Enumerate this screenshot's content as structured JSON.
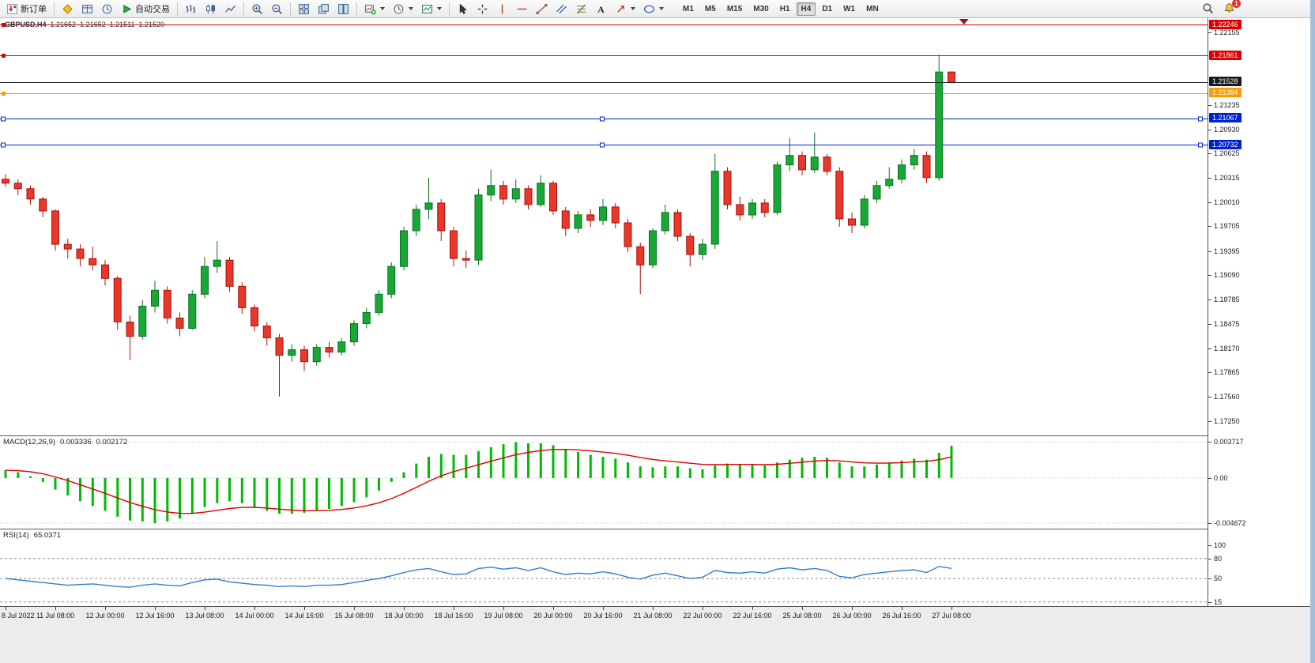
{
  "toolbar": {
    "groups": [
      {
        "items": [
          {
            "name": "new-order-button",
            "icon": "new-order-icon",
            "label": "新订单"
          }
        ]
      },
      {
        "items": [
          {
            "name": "metaeditor-button",
            "icon": "metaeditor-icon"
          },
          {
            "name": "data-window-button",
            "icon": "data-window-icon"
          },
          {
            "name": "history-center-button",
            "icon": "history-center-icon"
          },
          {
            "name": "autotrading-button",
            "icon": "autotrading-icon",
            "label": "自动交易"
          }
        ]
      },
      {
        "items": [
          {
            "name": "bar-chart-button",
            "icon": "bars-chart-icon"
          },
          {
            "name": "candlestick-chart-button",
            "icon": "candles-chart-icon"
          },
          {
            "name": "line-chart-button",
            "icon": "line-chart-icon"
          }
        ]
      },
      {
        "items": [
          {
            "name": "zoom-in-button",
            "icon": "zoom-in-icon"
          },
          {
            "name": "zoom-out-button",
            "icon": "zoom-out-icon"
          }
        ]
      },
      {
        "items": [
          {
            "name": "tile-windows-button",
            "icon": "tile-windows-icon"
          },
          {
            "name": "cascade-windows-button",
            "icon": "cascade-windows-icon"
          },
          {
            "name": "arrange-windows-button",
            "icon": "arrange-windows-icon"
          }
        ]
      },
      {
        "items": [
          {
            "name": "new-chart-button",
            "icon": "new-chart-icon",
            "caret": true
          },
          {
            "name": "profiles-button",
            "icon": "period-icon",
            "caret": true
          },
          {
            "name": "templates-button",
            "icon": "template-icon",
            "caret": true
          }
        ]
      },
      {
        "items": [
          {
            "name": "cursor-button",
            "icon": "cursor-icon"
          },
          {
            "name": "crosshair-button",
            "icon": "crosshair-icon"
          },
          {
            "name": "vertical-line-button",
            "icon": "vline-icon"
          },
          {
            "name": "horizontal-line-button",
            "icon": "hline-icon"
          },
          {
            "name": "trendline-button",
            "icon": "trendline-icon"
          },
          {
            "name": "channel-button",
            "icon": "channel-icon"
          },
          {
            "name": "fibonacci-button",
            "icon": "fibonacci-icon"
          },
          {
            "name": "text-button",
            "icon": "text-icon"
          },
          {
            "name": "arrows-button",
            "icon": "arrows-icon",
            "caret": true
          },
          {
            "name": "shapes-button",
            "icon": "shapes-icon",
            "caret": true
          }
        ]
      }
    ],
    "timeframes": [
      {
        "label": "M1"
      },
      {
        "label": "M5"
      },
      {
        "label": "M15"
      },
      {
        "label": "M30"
      },
      {
        "label": "H1"
      },
      {
        "label": "H4",
        "active": true
      },
      {
        "label": "D1"
      },
      {
        "label": "W1"
      },
      {
        "label": "MN"
      }
    ],
    "right_items": [
      {
        "name": "search-button",
        "icon": "search-icon"
      },
      {
        "name": "notifications-button",
        "icon": "alert-icon",
        "badge": "1"
      }
    ]
  },
  "chart_data": {
    "type": "candlestick",
    "title": {
      "symbol_period": "GBPUSD,H4",
      "open": "1.21652",
      "high": "1.21652",
      "low": "1.21511",
      "close": "1.21520"
    },
    "ylim": [
      1.1707,
      1.2233
    ],
    "colors": {
      "up": "#18a836",
      "up_border": "#0a7022",
      "down": "#e8372b",
      "down_border": "#a8150b",
      "macd_hist": "#00bb00",
      "macd_signal": "#e00000",
      "rsi_line": "#2f7fd4",
      "line_red": "#e00000",
      "line_orange": "#ff9900",
      "line_blue": "#0022cc",
      "line_current": "#1a1a1a"
    },
    "time_labels": [
      "8 Jul 2022",
      "11 Jul 08:00",
      "12 Jul 00:00",
      "12 Jul 16:00",
      "13 Jul 08:00",
      "14 Jul 00:00",
      "14 Jul 16:00",
      "15 Jul 08:00",
      "18 Jul 00:00",
      "18 Jul 16:00",
      "19 Jul 08:00",
      "20 Jul 00:00",
      "20 Jul 16:00",
      "21 Jul 08:00",
      "22 Jul 00:00",
      "22 Jul 16:00",
      "25 Jul 08:00",
      "26 Jul 00:00",
      "26 Jul 16:00",
      "27 Jul 08:00"
    ],
    "label_every": 4,
    "candles": [
      [
        1.203,
        1.2036,
        1.202,
        1.2025
      ],
      [
        1.2025,
        1.203,
        1.201,
        1.2018
      ],
      [
        1.2018,
        1.2022,
        1.1998,
        1.2005
      ],
      [
        1.2005,
        1.2008,
        1.1982,
        1.199
      ],
      [
        1.199,
        1.1992,
        1.194,
        1.1948
      ],
      [
        1.1948,
        1.1955,
        1.193,
        1.1942
      ],
      [
        1.1942,
        1.1948,
        1.192,
        1.193
      ],
      [
        1.193,
        1.1945,
        1.1915,
        1.1922
      ],
      [
        1.1922,
        1.1928,
        1.1896,
        1.1905
      ],
      [
        1.1905,
        1.1908,
        1.184,
        1.185
      ],
      [
        1.185,
        1.1858,
        1.1802,
        1.1832
      ],
      [
        1.1832,
        1.1878,
        1.1828,
        1.187
      ],
      [
        1.187,
        1.1902,
        1.1862,
        1.189
      ],
      [
        1.189,
        1.1895,
        1.1848,
        1.1855
      ],
      [
        1.1855,
        1.1862,
        1.1832,
        1.1842
      ],
      [
        1.1842,
        1.189,
        1.184,
        1.1885
      ],
      [
        1.1885,
        1.1932,
        1.188,
        1.192
      ],
      [
        1.192,
        1.1952,
        1.1912,
        1.1928
      ],
      [
        1.1928,
        1.1932,
        1.1888,
        1.1895
      ],
      [
        1.1895,
        1.19,
        1.186,
        1.1868
      ],
      [
        1.1868,
        1.1872,
        1.1838,
        1.1845
      ],
      [
        1.1845,
        1.185,
        1.182,
        1.183
      ],
      [
        1.183,
        1.1835,
        1.1756,
        1.1808
      ],
      [
        1.1808,
        1.1822,
        1.18,
        1.1815
      ],
      [
        1.1815,
        1.182,
        1.1788,
        1.18
      ],
      [
        1.18,
        1.1822,
        1.1795,
        1.1818
      ],
      [
        1.1818,
        1.1825,
        1.1805,
        1.1812
      ],
      [
        1.1812,
        1.183,
        1.1808,
        1.1825
      ],
      [
        1.1825,
        1.1852,
        1.182,
        1.1848
      ],
      [
        1.1848,
        1.1868,
        1.1842,
        1.1862
      ],
      [
        1.1862,
        1.189,
        1.1858,
        1.1885
      ],
      [
        1.1885,
        1.1925,
        1.188,
        1.192
      ],
      [
        1.192,
        1.197,
        1.1915,
        1.1965
      ],
      [
        1.1965,
        1.1998,
        1.1958,
        1.1992
      ],
      [
        1.1992,
        1.2032,
        1.198,
        1.2
      ],
      [
        1.2,
        1.2005,
        1.1952,
        1.1965
      ],
      [
        1.1965,
        1.197,
        1.192,
        1.193
      ],
      [
        1.193,
        1.194,
        1.1918,
        1.1928
      ],
      [
        1.1928,
        1.2018,
        1.1922,
        1.201
      ],
      [
        1.201,
        1.2042,
        1.2002,
        1.2022
      ],
      [
        1.2022,
        1.2028,
        1.1998,
        1.2005
      ],
      [
        1.2005,
        1.203,
        1.2,
        1.2018
      ],
      [
        1.2018,
        1.2022,
        1.1992,
        1.1998
      ],
      [
        1.1998,
        1.2035,
        1.1995,
        1.2025
      ],
      [
        1.2025,
        1.2028,
        1.1985,
        1.199
      ],
      [
        1.199,
        1.1995,
        1.1958,
        1.1968
      ],
      [
        1.1968,
        1.199,
        1.1962,
        1.1985
      ],
      [
        1.1985,
        1.1992,
        1.197,
        1.1978
      ],
      [
        1.1978,
        1.2005,
        1.1972,
        1.1995
      ],
      [
        1.1995,
        1.2,
        1.1968,
        1.1975
      ],
      [
        1.1975,
        1.198,
        1.1938,
        1.1945
      ],
      [
        1.1945,
        1.195,
        1.1885,
        1.1922
      ],
      [
        1.1922,
        1.1968,
        1.1918,
        1.1965
      ],
      [
        1.1965,
        1.1998,
        1.196,
        1.1988
      ],
      [
        1.1988,
        1.1992,
        1.1952,
        1.1958
      ],
      [
        1.1958,
        1.1962,
        1.192,
        1.1935
      ],
      [
        1.1935,
        1.1955,
        1.1928,
        1.1948
      ],
      [
        1.1948,
        1.2062,
        1.1942,
        1.204
      ],
      [
        1.204,
        1.2045,
        1.1992,
        1.1998
      ],
      [
        1.1998,
        1.2008,
        1.1978,
        1.1985
      ],
      [
        1.1985,
        1.2005,
        1.198,
        1.2
      ],
      [
        1.2,
        1.2005,
        1.1982,
        1.1988
      ],
      [
        1.1988,
        1.2052,
        1.1985,
        1.2048
      ],
      [
        1.2048,
        1.2082,
        1.204,
        1.206
      ],
      [
        1.206,
        1.2065,
        1.2035,
        1.2042
      ],
      [
        1.2042,
        1.2089,
        1.2038,
        1.2058
      ],
      [
        1.2058,
        1.2062,
        1.2035,
        1.204
      ],
      [
        1.204,
        1.2045,
        1.197,
        1.198
      ],
      [
        1.198,
        1.1988,
        1.1962,
        1.1972
      ],
      [
        1.1972,
        1.201,
        1.1968,
        1.2005
      ],
      [
        1.2005,
        1.2028,
        1.2,
        1.2022
      ],
      [
        1.2022,
        1.2045,
        1.2018,
        1.203
      ],
      [
        1.203,
        1.2055,
        1.2025,
        1.2048
      ],
      [
        1.2048,
        1.2068,
        1.2042,
        1.206
      ],
      [
        1.206,
        1.2065,
        1.2025,
        1.2032
      ],
      [
        1.2032,
        1.2187,
        1.2028,
        1.21652
      ],
      [
        1.21652,
        1.21652,
        1.21511,
        1.2152
      ]
    ],
    "hlines": [
      {
        "price": 1.22246,
        "label": "1.22246",
        "color": "#e00000",
        "handles": "left"
      },
      {
        "price": 1.21861,
        "label": "1.21861",
        "color": "#e00000",
        "handles": "left"
      },
      {
        "price": 1.21528,
        "label": "1.21528",
        "color": "#1a1a1a",
        "current": true
      },
      {
        "price": 1.21384,
        "label": "1.21384",
        "color": "#ff9900",
        "handles": "left"
      },
      {
        "price": 1.21067,
        "label": "1.21067",
        "color": "#0022cc",
        "handles": "three"
      },
      {
        "price": 1.20732,
        "label": "1.20732",
        "color": "#0022cc",
        "handles": "three"
      }
    ],
    "price_axis_labels": [
      "1.22155",
      "1.21235",
      "1.20930",
      "1.20625",
      "1.20315",
      "1.20010",
      "1.19705",
      "1.19395",
      "1.19090",
      "1.18785",
      "1.18475",
      "1.18170",
      "1.17865",
      "1.17560",
      "1.17250"
    ],
    "chart_shift_marker": {
      "index": 77
    },
    "indicators": [
      {
        "type": "macd",
        "label": "MACD(12,26,9)",
        "value_main": "0.003336",
        "value_signal": "0.002172",
        "axis_labels": [
          "0.003717",
          "0.00",
          "-0.004672"
        ],
        "axis_values": [
          0.003717,
          0,
          -0.004672
        ],
        "ylim": [
          -0.005,
          0.004
        ],
        "histogram": [
          0.0008,
          0.0006,
          0.0002,
          -0.0004,
          -0.0012,
          -0.0018,
          -0.0024,
          -0.0029,
          -0.0034,
          -0.004,
          -0.0044,
          -0.0045,
          -0.004672,
          -0.0045,
          -0.0042,
          -0.0037,
          -0.003,
          -0.0026,
          -0.0024,
          -0.0026,
          -0.003,
          -0.0034,
          -0.0037,
          -0.0037,
          -0.0036,
          -0.0034,
          -0.0032,
          -0.0029,
          -0.0025,
          -0.002,
          -0.0013,
          -0.0004,
          0.0006,
          0.0015,
          0.0022,
          0.0025,
          0.0024,
          0.0024,
          0.0028,
          0.0032,
          0.0035,
          0.003717,
          0.0036,
          0.0036,
          0.0034,
          0.003,
          0.0027,
          0.0024,
          0.0022,
          0.002,
          0.0016,
          0.0012,
          0.0011,
          0.0012,
          0.0012,
          0.001,
          0.0009,
          0.0013,
          0.0015,
          0.0014,
          0.0014,
          0.0013,
          0.0016,
          0.0019,
          0.0021,
          0.0022,
          0.0021,
          0.0016,
          0.0012,
          0.0012,
          0.0014,
          0.0016,
          0.0018,
          0.002,
          0.0019,
          0.0026,
          0.003336
        ]
      },
      {
        "type": "rsi",
        "label": "RSI(14)",
        "value": "65.0371",
        "axis_labels": [
          "100",
          "80",
          "50",
          "15"
        ],
        "axis_values": [
          100,
          80,
          50,
          15
        ],
        "levels": [
          80,
          50,
          15
        ],
        "ylim": [
          10,
          102
        ],
        "series": [
          50,
          48,
          46,
          44,
          42,
          40,
          41,
          42,
          40,
          38,
          37,
          40,
          42,
          40,
          39,
          44,
          48,
          49,
          45,
          43,
          41,
          40,
          38,
          39,
          38,
          40,
          40,
          41,
          44,
          47,
          50,
          54,
          59,
          63,
          65,
          60,
          56,
          57,
          65,
          67,
          64,
          66,
          62,
          66,
          60,
          56,
          58,
          57,
          60,
          57,
          52,
          49,
          55,
          58,
          54,
          50,
          52,
          62,
          59,
          58,
          60,
          58,
          64,
          66,
          63,
          65,
          62,
          53,
          51,
          56,
          58,
          60,
          62,
          63,
          59,
          68,
          65.04
        ]
      }
    ]
  }
}
